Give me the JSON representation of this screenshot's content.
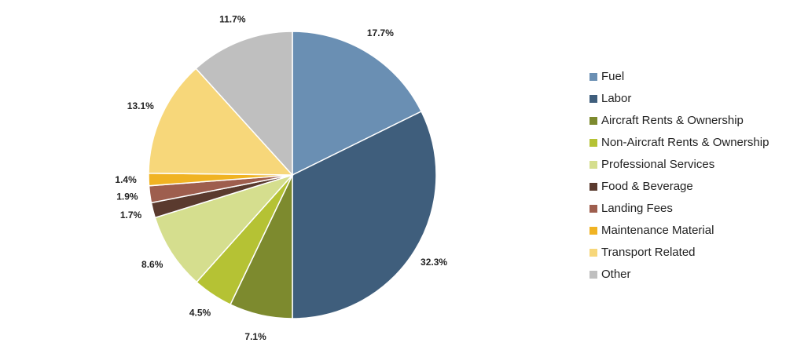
{
  "chart_data": {
    "type": "pie",
    "categories": [
      "Fuel",
      "Labor",
      "Aircraft Rents & Ownership",
      "Non-Aircraft Rents & Ownership",
      "Professional Services",
      "Food & Beverage",
      "Landing Fees",
      "Maintenance Material",
      "Transport Related",
      "Other"
    ],
    "values": [
      17.7,
      32.3,
      7.1,
      4.5,
      8.6,
      1.7,
      1.9,
      1.4,
      13.1,
      11.7
    ],
    "value_labels": [
      "17.7%",
      "32.3%",
      "7.1%",
      "4.5%",
      "8.6%",
      "1.7%",
      "1.9%",
      "1.4%",
      "13.1%",
      "11.7%"
    ],
    "colors": [
      "#6a8fb3",
      "#3f5e7c",
      "#7d8a2e",
      "#b5c234",
      "#d5de8e",
      "#5a3a2e",
      "#9e5e4e",
      "#f0b323",
      "#f7d77a",
      "#bfbfbf"
    ],
    "legend": "right"
  }
}
